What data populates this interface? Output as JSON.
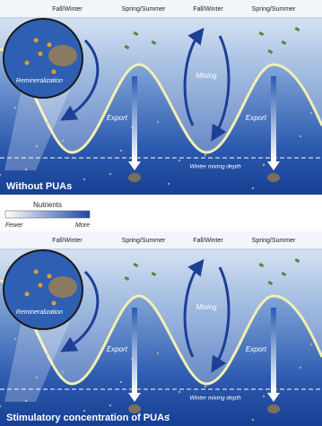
{
  "panels": [
    {
      "seasons": [
        "Fall/Winter",
        "Spring/Summer",
        "Fall/Winter",
        "Spring/Summer"
      ],
      "remineralization": "Remineralization",
      "mixing": "Mixing",
      "export": [
        "Export",
        "Export"
      ],
      "depth": "Winter mixing depth",
      "caption": "Without PUAs"
    },
    {
      "seasons": [
        "Fall/Winter",
        "Spring/Summer",
        "Fall/Winter",
        "Spring/Summer"
      ],
      "remineralization": "Remineralization",
      "mixing": "Mixing",
      "export": [
        "Export",
        "Export"
      ],
      "depth": "Winter mixing depth",
      "caption": "Stimulatory concentration of PUAs"
    }
  ],
  "legend": {
    "title": "Nutrients",
    "low": "Fewer",
    "high": "More"
  }
}
